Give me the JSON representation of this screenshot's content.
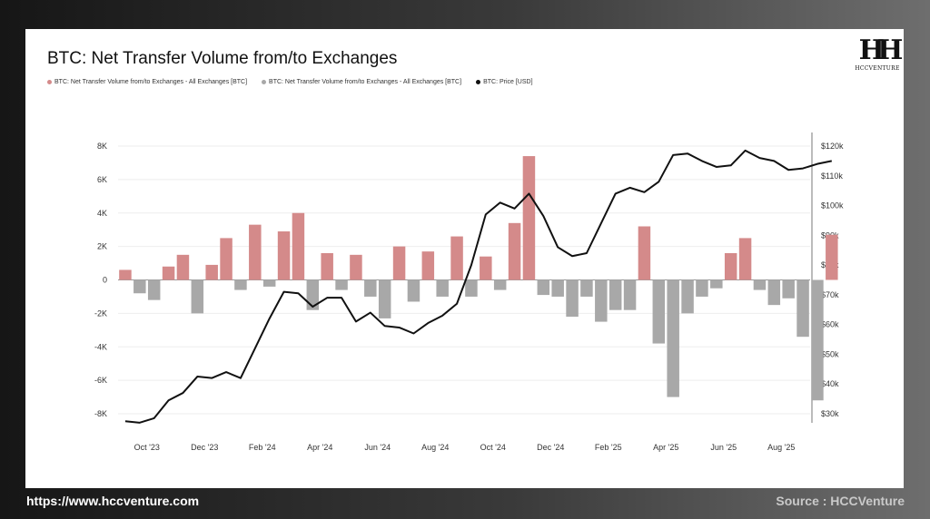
{
  "title": "BTC: Net Transfer Volume from/to Exchanges",
  "logo": {
    "text": "HCCVENTURE"
  },
  "footer": {
    "url": "https://www.hccventure.com",
    "source": "Source : HCCVenture"
  },
  "colors": {
    "positive": "#d48a8a",
    "negative": "#a8a8a8",
    "price": "#111111"
  },
  "chart_data": {
    "type": "bar",
    "x_unit": "month",
    "x_ticks": [
      "Oct '23",
      "Dec '23",
      "Feb '24",
      "Apr '24",
      "Jun '24",
      "Aug '24",
      "Oct '24",
      "Dec '24",
      "Feb '25",
      "Apr '25",
      "Jun '25",
      "Aug '25"
    ],
    "ylim_left": [
      -8000,
      8000
    ],
    "yticks_left": [
      "8K",
      "6K",
      "4K",
      "2K",
      "0",
      "-2K",
      "-4K",
      "-6K",
      "-8K"
    ],
    "ylim_right": [
      30000,
      120000
    ],
    "yticks_right": [
      "$120k",
      "$110k",
      "$100k",
      "$90k",
      "$80k",
      "$70k",
      "$60k",
      "$50k",
      "$40k",
      "$30k"
    ],
    "legend": [
      {
        "name": "BTC: Net Transfer Volume from/to Exchanges - All Exchanges [BTC]",
        "color": "#d48a8a"
      },
      {
        "name": "BTC: Net Transfer Volume from/to Exchanges - All Exchanges [BTC]",
        "color": "#a8a8a8"
      },
      {
        "name": "BTC: Price [USD]",
        "color": "#111111"
      }
    ],
    "series": [
      {
        "name": "BTC: Net Transfer Volume from/to Exchanges - All Exchanges [BTC]",
        "type": "bar",
        "x": [
          0,
          0.5,
          1,
          1.5,
          2,
          2.5,
          3,
          3.5,
          4,
          4.5,
          5,
          5.5,
          6,
          6.5,
          7,
          7.5,
          8,
          8.5,
          9,
          9.5,
          10,
          10.5,
          11,
          11.5,
          12,
          12.5,
          13,
          13.5,
          14,
          14.5,
          15,
          15.5,
          16,
          16.5,
          17,
          17.5,
          18,
          18.5,
          19,
          19.5,
          20,
          20.5,
          21,
          21.5,
          22,
          22.5,
          23,
          23.5,
          24,
          24.5
        ],
        "values": [
          600,
          -800,
          -1200,
          800,
          1500,
          -2000,
          900,
          2500,
          -600,
          3300,
          -400,
          2900,
          4000,
          -1800,
          1600,
          -600,
          1500,
          -1000,
          -2300,
          2000,
          -1300,
          1700,
          -1000,
          2600,
          -1000,
          1400,
          -600,
          3400,
          7400,
          -900,
          -1000,
          -2200,
          -1000,
          -2500,
          -1800,
          -1800,
          3200,
          -3800,
          -7000,
          -2000,
          -1000,
          -500,
          1600,
          2500,
          -600,
          -1500,
          -1100,
          -3400,
          -7200,
          2700
        ]
      },
      {
        "name": "BTC: Price [USD]",
        "type": "line",
        "x": [
          0,
          0.5,
          1,
          1.5,
          2,
          2.5,
          3,
          3.5,
          4,
          4.5,
          5,
          5.5,
          6,
          6.5,
          7,
          7.5,
          8,
          8.5,
          9,
          9.5,
          10,
          10.5,
          11,
          11.5,
          12,
          12.5,
          13,
          13.5,
          14,
          14.5,
          15,
          15.5,
          16,
          16.5,
          17,
          17.5,
          18,
          18.5,
          19,
          19.5,
          20,
          20.5,
          21,
          21.5,
          22,
          22.5,
          23,
          23.5,
          24,
          24.5
        ],
        "values": [
          27500,
          27000,
          28500,
          34500,
          37000,
          42500,
          42000,
          44000,
          42000,
          52000,
          62000,
          71000,
          70500,
          66000,
          69000,
          69000,
          61000,
          64000,
          59500,
          59000,
          57000,
          60500,
          63000,
          67000,
          80000,
          97000,
          101000,
          99000,
          104000,
          96500,
          86000,
          83000,
          84000,
          94000,
          104000,
          106000,
          104500,
          108000,
          117000,
          117500,
          115000,
          113000,
          113500,
          118500,
          116000,
          115000,
          112000,
          112500,
          114000,
          115000
        ]
      }
    ]
  }
}
